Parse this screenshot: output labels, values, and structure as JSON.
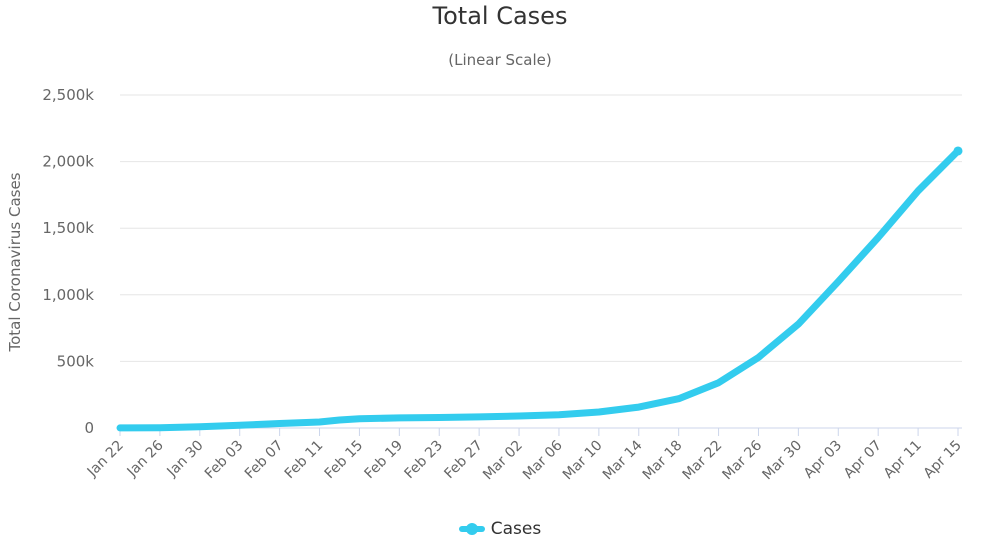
{
  "chart_data": {
    "type": "line",
    "title": "Total Cases",
    "subtitle": "(Linear Scale)",
    "ylabel": "Total Coronavirus Cases",
    "xlabel": "",
    "ylim": [
      0,
      2500000
    ],
    "y_ticks": [
      0,
      500000,
      1000000,
      1500000,
      2000000,
      2500000
    ],
    "y_tick_labels": [
      "0",
      "500k",
      "1,000k",
      "1,500k",
      "2,000k",
      "2,500k"
    ],
    "x_tick_labels": [
      "Jan 22",
      "Jan 26",
      "Jan 30",
      "Feb 03",
      "Feb 07",
      "Feb 11",
      "Feb 15",
      "Feb 19",
      "Feb 23",
      "Feb 27",
      "Mar 02",
      "Mar 06",
      "Mar 10",
      "Mar 14",
      "Mar 18",
      "Mar 22",
      "Mar 26",
      "Mar 30",
      "Apr 03",
      "Apr 07",
      "Apr 11",
      "Apr 15"
    ],
    "grid": true,
    "legend_position": "bottom-center",
    "series": [
      {
        "name": "Cases",
        "color": "#33ccee",
        "points": [
          [
            "Jan 22",
            580
          ],
          [
            "Jan 26",
            2100
          ],
          [
            "Jan 30",
            9900
          ],
          [
            "Feb 03",
            20000
          ],
          [
            "Feb 07",
            34000
          ],
          [
            "Feb 11",
            45000
          ],
          [
            "Feb 13",
            60000
          ],
          [
            "Feb 15",
            69000
          ],
          [
            "Feb 19",
            76000
          ],
          [
            "Feb 23",
            79000
          ],
          [
            "Feb 27",
            83000
          ],
          [
            "Mar 02",
            90000
          ],
          [
            "Mar 06",
            100000
          ],
          [
            "Mar 10",
            120000
          ],
          [
            "Mar 14",
            157000
          ],
          [
            "Mar 18",
            220000
          ],
          [
            "Mar 22",
            340000
          ],
          [
            "Mar 26",
            530000
          ],
          [
            "Mar 30",
            780000
          ],
          [
            "Apr 03",
            1100000
          ],
          [
            "Apr 07",
            1430000
          ],
          [
            "Apr 11",
            1780000
          ],
          [
            "Apr 15",
            2080000
          ]
        ]
      }
    ]
  },
  "legend": {
    "label": "Cases"
  }
}
